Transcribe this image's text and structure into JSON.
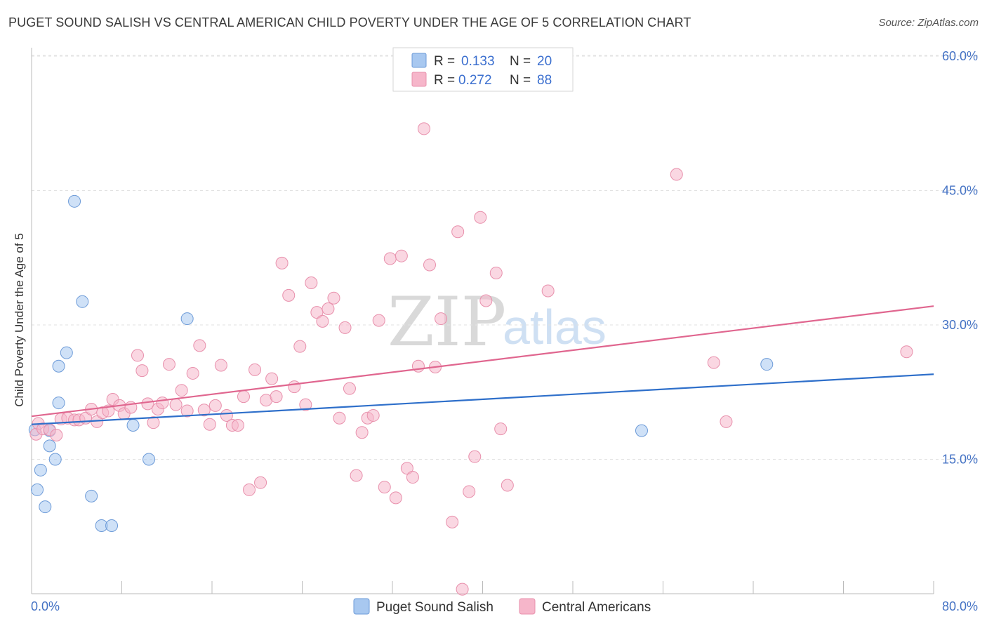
{
  "header": {
    "title": "PUGET SOUND SALISH VS CENTRAL AMERICAN CHILD POVERTY UNDER THE AGE OF 5 CORRELATION CHART",
    "source": "Source: ZipAtlas.com"
  },
  "watermark": {
    "zip": "ZIP",
    "atlas": "atlas"
  },
  "legend_top": {
    "rows": [
      {
        "r_label": "R =",
        "r_value": "0.133",
        "n_label": "N =",
        "n_value": "20",
        "color": "#a8c8f0"
      },
      {
        "r_label": "R =",
        "r_value": "0.272",
        "n_label": "N =",
        "n_value": "88",
        "color": "#f6b6ca"
      }
    ]
  },
  "legend_bottom": {
    "items": [
      {
        "label": "Puget Sound Salish",
        "color": "#a8c8f0"
      },
      {
        "label": "Central Americans",
        "color": "#f6b6ca"
      }
    ]
  },
  "chart_data": {
    "type": "scatter",
    "title": "PUGET SOUND SALISH VS CENTRAL AMERICAN CHILD POVERTY UNDER THE AGE OF 5 CORRELATION CHART",
    "xlabel": "",
    "ylabel": "Child Poverty Under the Age of 5",
    "xlim": [
      0,
      80
    ],
    "ylim": [
      0,
      60
    ],
    "x_tick_labels": [
      "0.0%",
      "80.0%"
    ],
    "y_ticks": [
      15,
      30,
      45,
      60
    ],
    "y_tick_labels": [
      "15.0%",
      "30.0%",
      "45.0%",
      "60.0%"
    ],
    "grid": true,
    "series": [
      {
        "name": "Puget Sound Salish",
        "color": "#a8c8f0",
        "stroke": "#6d9bd8",
        "line_color": "#2e6fca",
        "r": 0.133,
        "n": 20,
        "trend": {
          "x": [
            0,
            80
          ],
          "y": [
            18.9,
            24.5
          ]
        },
        "points": [
          [
            0.3,
            18.3
          ],
          [
            3.8,
            43.8
          ],
          [
            4.5,
            32.6
          ],
          [
            2.4,
            21.3
          ],
          [
            3.1,
            26.9
          ],
          [
            2.4,
            25.4
          ],
          [
            1.6,
            18.2
          ],
          [
            1.6,
            16.5
          ],
          [
            2.1,
            15.0
          ],
          [
            0.8,
            13.8
          ],
          [
            0.5,
            11.6
          ],
          [
            1.2,
            9.7
          ],
          [
            5.3,
            10.9
          ],
          [
            6.2,
            7.6
          ],
          [
            7.1,
            7.6
          ],
          [
            9.0,
            18.8
          ],
          [
            10.4,
            15.0
          ],
          [
            13.8,
            30.7
          ],
          [
            54.1,
            18.2
          ],
          [
            65.2,
            25.6
          ]
        ]
      },
      {
        "name": "Central Americans",
        "color": "#f6b6ca",
        "stroke": "#e890ac",
        "line_color": "#e0668f",
        "r": 0.272,
        "n": 88,
        "trend": {
          "x": [
            0,
            80
          ],
          "y": [
            19.8,
            32.1
          ]
        },
        "points": [
          [
            0.4,
            17.8
          ],
          [
            0.6,
            19.0
          ],
          [
            1.0,
            18.4
          ],
          [
            1.6,
            18.3
          ],
          [
            2.2,
            17.7
          ],
          [
            2.6,
            19.5
          ],
          [
            3.2,
            19.6
          ],
          [
            3.8,
            19.4
          ],
          [
            4.2,
            19.4
          ],
          [
            4.8,
            19.6
          ],
          [
            5.3,
            20.6
          ],
          [
            5.8,
            19.2
          ],
          [
            6.3,
            20.2
          ],
          [
            6.8,
            20.4
          ],
          [
            7.2,
            21.7
          ],
          [
            7.8,
            21.0
          ],
          [
            8.2,
            20.1
          ],
          [
            8.8,
            20.8
          ],
          [
            9.4,
            26.6
          ],
          [
            9.8,
            24.9
          ],
          [
            10.3,
            21.2
          ],
          [
            10.8,
            19.1
          ],
          [
            11.2,
            20.6
          ],
          [
            11.6,
            21.3
          ],
          [
            12.2,
            25.6
          ],
          [
            12.8,
            21.1
          ],
          [
            13.3,
            22.7
          ],
          [
            13.8,
            20.4
          ],
          [
            14.3,
            24.6
          ],
          [
            14.9,
            27.7
          ],
          [
            15.3,
            20.5
          ],
          [
            15.8,
            18.9
          ],
          [
            16.3,
            21.0
          ],
          [
            16.8,
            25.5
          ],
          [
            17.3,
            19.9
          ],
          [
            17.8,
            18.8
          ],
          [
            18.3,
            18.8
          ],
          [
            18.8,
            22.0
          ],
          [
            19.3,
            11.6
          ],
          [
            19.8,
            25.0
          ],
          [
            20.3,
            12.4
          ],
          [
            20.8,
            21.6
          ],
          [
            21.3,
            24.0
          ],
          [
            21.7,
            22.0
          ],
          [
            22.2,
            36.9
          ],
          [
            22.8,
            33.3
          ],
          [
            23.3,
            23.1
          ],
          [
            23.8,
            27.6
          ],
          [
            24.3,
            21.1
          ],
          [
            24.8,
            34.7
          ],
          [
            25.3,
            31.4
          ],
          [
            25.8,
            30.4
          ],
          [
            26.3,
            31.8
          ],
          [
            26.8,
            33.0
          ],
          [
            27.3,
            19.6
          ],
          [
            27.8,
            29.7
          ],
          [
            28.2,
            22.9
          ],
          [
            28.8,
            13.2
          ],
          [
            29.3,
            18.0
          ],
          [
            29.8,
            19.6
          ],
          [
            30.3,
            19.9
          ],
          [
            30.8,
            30.5
          ],
          [
            31.3,
            11.9
          ],
          [
            31.8,
            37.4
          ],
          [
            32.3,
            10.7
          ],
          [
            32.8,
            37.7
          ],
          [
            33.3,
            14.0
          ],
          [
            33.8,
            13.0
          ],
          [
            34.3,
            25.4
          ],
          [
            34.8,
            51.9
          ],
          [
            35.3,
            36.7
          ],
          [
            35.8,
            25.3
          ],
          [
            36.3,
            30.7
          ],
          [
            37.3,
            8.0
          ],
          [
            37.8,
            40.4
          ],
          [
            38.2,
            0.5
          ],
          [
            38.8,
            11.4
          ],
          [
            39.3,
            15.3
          ],
          [
            39.8,
            42.0
          ],
          [
            40.3,
            32.7
          ],
          [
            41.2,
            35.8
          ],
          [
            41.6,
            18.4
          ],
          [
            42.2,
            12.1
          ],
          [
            45.8,
            33.8
          ],
          [
            57.2,
            46.8
          ],
          [
            60.5,
            25.8
          ],
          [
            61.6,
            19.2
          ],
          [
            77.6,
            27.0
          ]
        ]
      }
    ]
  }
}
